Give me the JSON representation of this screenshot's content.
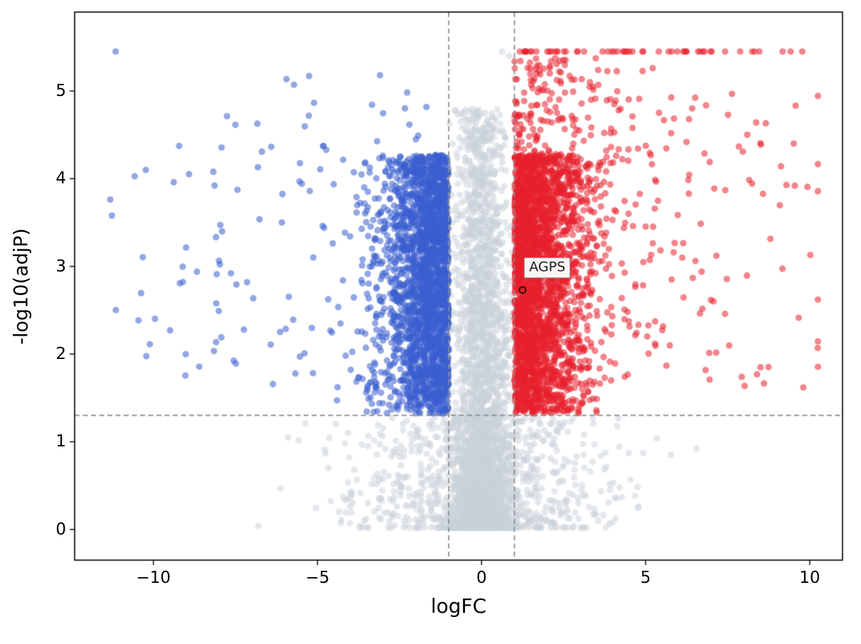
{
  "chart_data": {
    "type": "scatter",
    "title": "",
    "xlabel": "logFC",
    "ylabel": "-log10(adjP)",
    "xlim": [
      -12.4,
      11.0
    ],
    "ylim": [
      -0.35,
      5.9
    ],
    "grid": false,
    "legend": null,
    "xticks": [
      {
        "value": -10,
        "label": "−10"
      },
      {
        "value": -5,
        "label": "−5"
      },
      {
        "value": 0,
        "label": "0"
      },
      {
        "value": 5,
        "label": "5"
      },
      {
        "value": 10,
        "label": "10"
      }
    ],
    "yticks": [
      {
        "value": 0,
        "label": "0"
      },
      {
        "value": 1,
        "label": "1"
      },
      {
        "value": 2,
        "label": "2"
      },
      {
        "value": 3,
        "label": "3"
      },
      {
        "value": 4,
        "label": "4"
      },
      {
        "value": 5,
        "label": "5"
      }
    ],
    "thresholds": {
      "logfc_neg": -1,
      "logfc_pos": 1,
      "neglog_p": 1.301
    },
    "colors": {
      "up": "#e8202e",
      "down": "#3a5fd0",
      "ns": "#c9d2da",
      "threshold_line": "#8a8a8a",
      "spine": "#000000"
    },
    "point": {
      "radius": 4.6,
      "alpha_colored": 0.55,
      "alpha_ns": 0.5
    },
    "annotation": {
      "label": "AGPS",
      "marker_x": 1.25,
      "marker_y": 2.73,
      "label_x": 1.3,
      "label_y": 2.87
    },
    "generation": {
      "seed": 1337,
      "cap_y": 5.45,
      "groups": [
        {
          "name": "ns-core",
          "n": 3000,
          "x_sigma": 0.42,
          "y_max": 4.8,
          "y_pow": 2.2,
          "x_clamp": [
            -1.6,
            1.6
          ]
        },
        {
          "name": "ns-wide",
          "n": 900,
          "x_sigma": 2.0,
          "y_max": 1.28,
          "y_pow": 1.4,
          "x_clamp": [
            -6.8,
            6.8
          ]
        },
        {
          "name": "down-main",
          "n": 2300,
          "side": -1,
          "x_sigma": 0.95,
          "y_min": 1.32,
          "y_span": 2.95,
          "y_pow": 0.9,
          "x_clamp": [
            -11.3,
            -1.0
          ]
        },
        {
          "name": "down-tail",
          "n": 110,
          "side": -1,
          "tail": true,
          "x_base": 2.2,
          "x_span": 8.2,
          "x_pow": 1.6,
          "y_min": 1.6,
          "y_span": 2.8,
          "y_pow": 1.1,
          "x_clamp": [
            -11.35,
            -1.0
          ]
        },
        {
          "name": "down-high",
          "n": 22,
          "side": -1,
          "tail": true,
          "x_base": 0.5,
          "x_span": 6.5,
          "x_pow": 1.0,
          "y_min": 4.2,
          "y_span": 1.0,
          "y_pow": 1.0,
          "x_clamp": [
            -11.3,
            -1.0
          ]
        },
        {
          "name": "up-main",
          "n": 2700,
          "side": 1,
          "x_sigma": 1.05,
          "y_min": 1.32,
          "y_span": 2.95,
          "y_pow": 0.9,
          "x_clamp": [
            1.0,
            10.3
          ]
        },
        {
          "name": "up-tail",
          "n": 170,
          "side": 1,
          "tail": true,
          "x_base": 2.2,
          "x_span": 7.4,
          "x_pow": 1.5,
          "y_min": 1.6,
          "y_span": 3.4,
          "y_pow": 1.0,
          "x_clamp": [
            1.0,
            10.25
          ]
        },
        {
          "name": "up-high",
          "n": 160,
          "side": 1,
          "x_sigma": 1.7,
          "y_min": 4.2,
          "y_span": 1.2,
          "y_pow": 1.0,
          "x_clamp": [
            1.0,
            10.1
          ]
        },
        {
          "name": "up-capped",
          "n": 55,
          "side": 1,
          "tail": true,
          "x_base": 0.08,
          "x_span": 8.8,
          "x_pow": 1.6,
          "y_min": 5.45,
          "y_span": 0,
          "y_pow": 1.0,
          "x_clamp": [
            1.0,
            10.1
          ]
        }
      ],
      "extra_points": [
        {
          "x": -11.15,
          "y": 5.45,
          "class": "down"
        },
        {
          "x": 0.62,
          "y": 5.45,
          "class": "ns"
        },
        {
          "x": 0.84,
          "y": 5.4,
          "class": "ns"
        },
        {
          "x": 6.55,
          "y": 0.92,
          "class": "ns"
        },
        {
          "x": -5.9,
          "y": 1.05,
          "class": "ns"
        }
      ]
    }
  }
}
